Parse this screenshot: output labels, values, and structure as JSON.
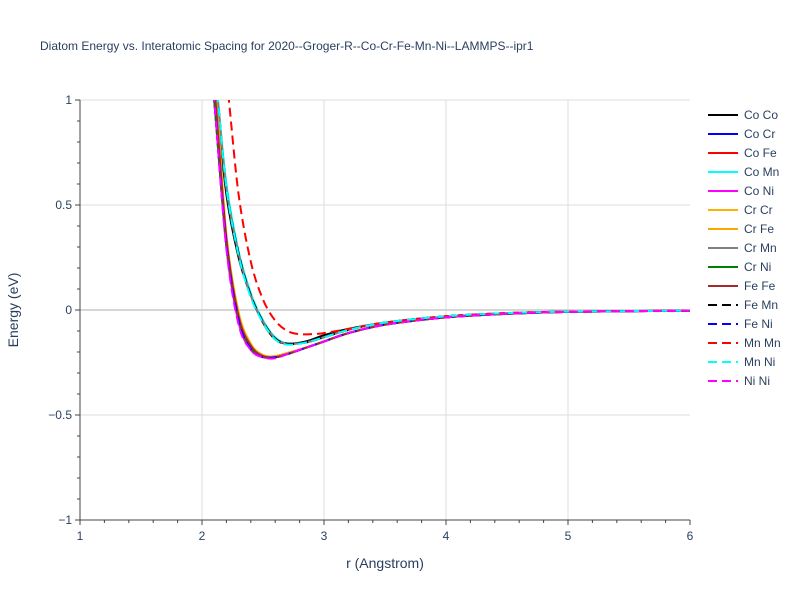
{
  "chart_data": {
    "type": "line",
    "title": "Diatom Energy vs. Interatomic Spacing for 2020--Groger-R--Co-Cr-Fe-Mn-Ni--LAMMPS--ipr1",
    "xlabel": "r (Angstrom)",
    "ylabel": "Energy (eV)",
    "xlim": [
      1,
      6
    ],
    "ylim": [
      -1,
      1
    ],
    "xticks": [
      "1",
      "2",
      "3",
      "4",
      "5",
      "6"
    ],
    "yticks": [
      "1",
      "0.5",
      "0",
      "−0.5",
      "−1"
    ],
    "ytick_values": [
      1,
      0.5,
      0,
      -0.5,
      -1
    ],
    "xtick_values": [
      1,
      2,
      3,
      4,
      5,
      6
    ],
    "grid": true,
    "legend_position": "right",
    "series": [
      {
        "name": "Co Co",
        "color": "#000000",
        "dash": "solid",
        "x": [
          2.12,
          2.2,
          2.3,
          2.4,
          2.5,
          2.6,
          2.7,
          2.85,
          3.0,
          3.2,
          3.5,
          4.0,
          4.5,
          5.0,
          6.0
        ],
        "y": [
          1.0,
          0.55,
          0.25,
          0.07,
          -0.06,
          -0.14,
          -0.16,
          -0.15,
          -0.12,
          -0.09,
          -0.06,
          -0.03,
          -0.015,
          -0.008,
          -0.003
        ]
      },
      {
        "name": "Co Cr",
        "color": "#0000ff",
        "dash": "solid",
        "x": [
          2.1,
          2.2,
          2.3,
          2.4,
          2.5,
          2.6,
          2.7,
          2.85,
          3.0,
          3.2,
          3.5,
          4.0,
          4.5,
          5.0,
          6.0
        ],
        "y": [
          1.0,
          0.3,
          -0.05,
          -0.18,
          -0.22,
          -0.225,
          -0.21,
          -0.18,
          -0.15,
          -0.11,
          -0.07,
          -0.035,
          -0.018,
          -0.009,
          -0.003
        ]
      },
      {
        "name": "Co Fe",
        "color": "#ff0000",
        "dash": "solid",
        "x": [
          2.11,
          2.2,
          2.3,
          2.4,
          2.5,
          2.6,
          2.7,
          2.85,
          3.0,
          3.2,
          3.5,
          4.0,
          4.5,
          5.0,
          6.0
        ],
        "y": [
          1.0,
          0.33,
          -0.03,
          -0.17,
          -0.22,
          -0.22,
          -0.205,
          -0.18,
          -0.15,
          -0.11,
          -0.07,
          -0.035,
          -0.018,
          -0.009,
          -0.003
        ]
      },
      {
        "name": "Co Mn",
        "color": "#00ffff",
        "dash": "solid",
        "x": [
          2.13,
          2.2,
          2.3,
          2.4,
          2.5,
          2.6,
          2.7,
          2.85,
          3.0,
          3.2,
          3.5,
          4.0,
          4.5,
          5.0,
          6.0
        ],
        "y": [
          1.0,
          0.6,
          0.28,
          0.08,
          -0.05,
          -0.13,
          -0.16,
          -0.155,
          -0.13,
          -0.095,
          -0.06,
          -0.03,
          -0.015,
          -0.008,
          -0.003
        ]
      },
      {
        "name": "Co Ni",
        "color": "#ff00ff",
        "dash": "solid",
        "x": [
          2.1,
          2.2,
          2.3,
          2.4,
          2.5,
          2.6,
          2.7,
          2.85,
          3.0,
          3.2,
          3.5,
          4.0,
          4.5,
          5.0,
          6.0
        ],
        "y": [
          1.0,
          0.3,
          -0.06,
          -0.19,
          -0.225,
          -0.225,
          -0.21,
          -0.18,
          -0.15,
          -0.11,
          -0.07,
          -0.035,
          -0.018,
          -0.009,
          -0.003
        ]
      },
      {
        "name": "Cr Cr",
        "color": "#ffb000",
        "dash": "solid",
        "x": [
          2.12,
          2.2,
          2.3,
          2.4,
          2.5,
          2.6,
          2.7,
          2.85,
          3.0,
          3.2,
          3.5,
          4.0,
          4.5,
          5.0,
          6.0
        ],
        "y": [
          1.0,
          0.36,
          -0.01,
          -0.16,
          -0.215,
          -0.22,
          -0.205,
          -0.18,
          -0.15,
          -0.11,
          -0.07,
          -0.035,
          -0.018,
          -0.009,
          -0.003
        ]
      },
      {
        "name": "Cr Fe",
        "color": "#ffa500",
        "dash": "solid",
        "x": [
          2.12,
          2.2,
          2.3,
          2.4,
          2.5,
          2.6,
          2.7,
          2.85,
          3.0,
          3.2,
          3.5,
          4.0,
          4.5,
          5.0,
          6.0
        ],
        "y": [
          1.0,
          0.35,
          -0.02,
          -0.165,
          -0.215,
          -0.22,
          -0.205,
          -0.18,
          -0.15,
          -0.11,
          -0.07,
          -0.035,
          -0.018,
          -0.009,
          -0.003
        ]
      },
      {
        "name": "Cr Mn",
        "color": "#808080",
        "dash": "solid",
        "x": [
          2.13,
          2.2,
          2.3,
          2.4,
          2.5,
          2.6,
          2.7,
          2.85,
          3.0,
          3.2,
          3.5,
          4.0,
          4.5,
          5.0,
          6.0
        ],
        "y": [
          1.0,
          0.58,
          0.27,
          0.07,
          -0.055,
          -0.135,
          -0.16,
          -0.155,
          -0.13,
          -0.095,
          -0.06,
          -0.03,
          -0.015,
          -0.008,
          -0.003
        ]
      },
      {
        "name": "Cr Ni",
        "color": "#008000",
        "dash": "solid",
        "x": [
          2.1,
          2.2,
          2.3,
          2.4,
          2.5,
          2.6,
          2.7,
          2.85,
          3.0,
          3.2,
          3.5,
          4.0,
          4.5,
          5.0,
          6.0
        ],
        "y": [
          1.0,
          0.32,
          -0.04,
          -0.18,
          -0.22,
          -0.225,
          -0.21,
          -0.18,
          -0.15,
          -0.11,
          -0.07,
          -0.035,
          -0.018,
          -0.009,
          -0.003
        ]
      },
      {
        "name": "Fe Fe",
        "color": "#a52a2a",
        "dash": "solid",
        "x": [
          2.11,
          2.2,
          2.3,
          2.4,
          2.5,
          2.6,
          2.7,
          2.85,
          3.0,
          3.2,
          3.5,
          4.0,
          4.5,
          5.0,
          6.0
        ],
        "y": [
          1.0,
          0.34,
          -0.03,
          -0.17,
          -0.22,
          -0.225,
          -0.21,
          -0.18,
          -0.15,
          -0.11,
          -0.07,
          -0.035,
          -0.018,
          -0.009,
          -0.003
        ]
      },
      {
        "name": "Fe Mn",
        "color": "#000000",
        "dash": "dash",
        "x": [
          2.13,
          2.2,
          2.3,
          2.4,
          2.5,
          2.6,
          2.7,
          2.85,
          3.0,
          3.2,
          3.5,
          4.0,
          4.5,
          5.0,
          6.0
        ],
        "y": [
          1.0,
          0.58,
          0.27,
          0.07,
          -0.055,
          -0.135,
          -0.16,
          -0.155,
          -0.13,
          -0.095,
          -0.06,
          -0.03,
          -0.015,
          -0.008,
          -0.003
        ]
      },
      {
        "name": "Fe Ni",
        "color": "#0000ff",
        "dash": "dash",
        "x": [
          2.1,
          2.2,
          2.3,
          2.4,
          2.5,
          2.6,
          2.7,
          2.85,
          3.0,
          3.2,
          3.5,
          4.0,
          4.5,
          5.0,
          6.0
        ],
        "y": [
          1.0,
          0.31,
          -0.05,
          -0.185,
          -0.225,
          -0.225,
          -0.21,
          -0.18,
          -0.15,
          -0.11,
          -0.07,
          -0.035,
          -0.018,
          -0.009,
          -0.003
        ]
      },
      {
        "name": "Mn Mn",
        "color": "#ff0000",
        "dash": "dash",
        "x": [
          2.22,
          2.3,
          2.4,
          2.5,
          2.6,
          2.7,
          2.8,
          2.9,
          3.0,
          3.2,
          3.5,
          4.0,
          4.5,
          5.0,
          6.0
        ],
        "y": [
          1.0,
          0.55,
          0.23,
          0.05,
          -0.05,
          -0.1,
          -0.115,
          -0.115,
          -0.11,
          -0.09,
          -0.06,
          -0.03,
          -0.015,
          -0.008,
          -0.003
        ]
      },
      {
        "name": "Mn Ni",
        "color": "#00ffff",
        "dash": "dash",
        "x": [
          2.13,
          2.2,
          2.3,
          2.4,
          2.5,
          2.6,
          2.7,
          2.85,
          3.0,
          3.2,
          3.5,
          4.0,
          4.5,
          5.0,
          6.0
        ],
        "y": [
          1.0,
          0.58,
          0.26,
          0.06,
          -0.06,
          -0.14,
          -0.165,
          -0.155,
          -0.13,
          -0.095,
          -0.06,
          -0.03,
          -0.015,
          -0.008,
          -0.003
        ]
      },
      {
        "name": "Ni Ni",
        "color": "#ff00ff",
        "dash": "dash",
        "x": [
          2.1,
          2.2,
          2.3,
          2.4,
          2.5,
          2.6,
          2.7,
          2.85,
          3.0,
          3.2,
          3.5,
          4.0,
          4.5,
          5.0,
          6.0
        ],
        "y": [
          1.0,
          0.29,
          -0.07,
          -0.19,
          -0.225,
          -0.23,
          -0.21,
          -0.18,
          -0.15,
          -0.11,
          -0.07,
          -0.035,
          -0.018,
          -0.009,
          -0.003
        ]
      }
    ]
  }
}
